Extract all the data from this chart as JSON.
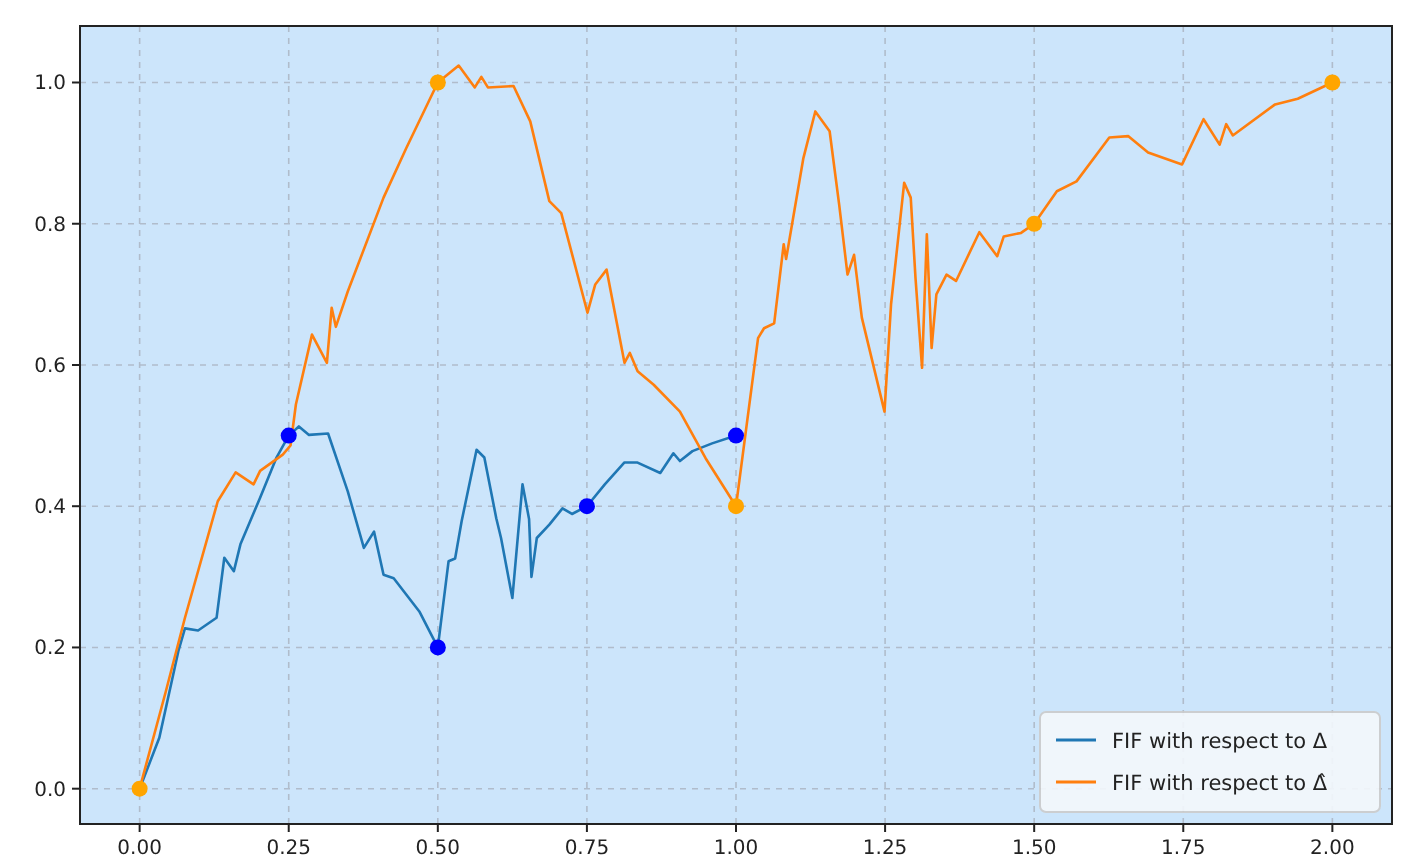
{
  "chart_data": {
    "type": "line",
    "xlim": [
      -0.1,
      2.1
    ],
    "ylim": [
      -0.05,
      1.08
    ],
    "xticks": [
      {
        "value": 0,
        "label": "0.00"
      },
      {
        "value": 0.25,
        "label": "0.25"
      },
      {
        "value": 0.5,
        "label": "0.50"
      },
      {
        "value": 0.75,
        "label": "0.75"
      },
      {
        "value": 1,
        "label": "1.00"
      },
      {
        "value": 1.25,
        "label": "1.25"
      },
      {
        "value": 1.5,
        "label": "1.50"
      },
      {
        "value": 1.75,
        "label": "1.75"
      },
      {
        "value": 2,
        "label": "2.00"
      }
    ],
    "yticks": [
      {
        "value": 0,
        "label": "0.0"
      },
      {
        "value": 0.2,
        "label": "0.2"
      },
      {
        "value": 0.4,
        "label": "0.4"
      },
      {
        "value": 0.6,
        "label": "0.6"
      },
      {
        "value": 0.8,
        "label": "0.8"
      },
      {
        "value": 1,
        "label": "1.0"
      }
    ],
    "grid": true,
    "legend": "bottom right",
    "line_style": "solid",
    "series": [
      {
        "name": "FIF with respect to Δ",
        "color": "#1f77b4",
        "x": [
          0,
          0.033,
          0.065,
          0.076,
          0.098,
          0.129,
          0.142,
          0.158,
          0.169,
          0.202,
          0.229,
          0.25,
          0.267,
          0.284,
          0.316,
          0.349,
          0.376,
          0.393,
          0.409,
          0.426,
          0.469,
          0.5,
          0.518,
          0.529,
          0.54,
          0.565,
          0.578,
          0.598,
          0.606,
          0.625,
          0.642,
          0.653,
          0.657,
          0.666,
          0.687,
          0.709,
          0.725,
          0.75,
          0.78,
          0.813,
          0.834,
          0.873,
          0.895,
          0.906,
          0.927,
          0.96,
          1.0
        ],
        "values": [
          0,
          0.072,
          0.195,
          0.227,
          0.224,
          0.242,
          0.327,
          0.308,
          0.346,
          0.412,
          0.468,
          0.5,
          0.513,
          0.501,
          0.503,
          0.421,
          0.341,
          0.364,
          0.303,
          0.298,
          0.251,
          0.2,
          0.322,
          0.326,
          0.379,
          0.48,
          0.469,
          0.383,
          0.355,
          0.27,
          0.431,
          0.382,
          0.3,
          0.355,
          0.374,
          0.397,
          0.389,
          0.4,
          0.431,
          0.462,
          0.462,
          0.447,
          0.475,
          0.464,
          0.478,
          0.489,
          0.5
        ]
      },
      {
        "name": "FIF with respect to Δ̂",
        "color": "#ff7f0e",
        "x": [
          0,
          0.044,
          0.076,
          0.131,
          0.161,
          0.191,
          0.202,
          0.24,
          0.253,
          0.262,
          0.289,
          0.314,
          0.322,
          0.329,
          0.349,
          0.409,
          0.447,
          0.5,
          0.535,
          0.562,
          0.573,
          0.584,
          0.627,
          0.655,
          0.687,
          0.707,
          0.751,
          0.764,
          0.783,
          0.813,
          0.822,
          0.835,
          0.862,
          0.906,
          0.949,
          1.0,
          1.037,
          1.047,
          1.064,
          1.08,
          1.084,
          1.113,
          1.133,
          1.157,
          1.173,
          1.187,
          1.198,
          1.211,
          1.249,
          1.26,
          1.282,
          1.293,
          1.301,
          1.312,
          1.32,
          1.328,
          1.336,
          1.353,
          1.369,
          1.408,
          1.438,
          1.449,
          1.478,
          1.5,
          1.538,
          1.571,
          1.626,
          1.658,
          1.691,
          1.748,
          1.784,
          1.811,
          1.822,
          1.833,
          1.904,
          1.942,
          2.0
        ],
        "values": [
          0,
          0.138,
          0.242,
          0.407,
          0.448,
          0.431,
          0.45,
          0.473,
          0.486,
          0.544,
          0.643,
          0.603,
          0.681,
          0.654,
          0.704,
          0.837,
          0.907,
          1.0,
          1.024,
          0.993,
          1.008,
          0.993,
          0.995,
          0.945,
          0.832,
          0.815,
          0.674,
          0.714,
          0.735,
          0.603,
          0.617,
          0.591,
          0.572,
          0.534,
          0.468,
          0.4,
          0.638,
          0.652,
          0.659,
          0.771,
          0.75,
          0.893,
          0.959,
          0.931,
          0.827,
          0.728,
          0.756,
          0.667,
          0.534,
          0.686,
          0.858,
          0.837,
          0.723,
          0.596,
          0.785,
          0.624,
          0.7,
          0.728,
          0.719,
          0.788,
          0.754,
          0.782,
          0.787,
          0.8,
          0.846,
          0.86,
          0.922,
          0.924,
          0.901,
          0.884,
          0.948,
          0.912,
          0.941,
          0.925,
          0.969,
          0.977,
          1.0
        ]
      },
      {
        "type": "scatter",
        "marker": "circle",
        "color": "#0000ff",
        "x": [
          0.25,
          0.5,
          0.75,
          1.0
        ],
        "values": [
          0.5,
          0.2,
          0.4,
          0.5
        ]
      },
      {
        "type": "scatter",
        "marker": "circle",
        "color": "#ffa500",
        "x": [
          0,
          0.5,
          1.0,
          1.5,
          2.0
        ],
        "values": [
          0,
          1.0,
          0.4,
          0.8,
          1.0
        ]
      }
    ]
  }
}
